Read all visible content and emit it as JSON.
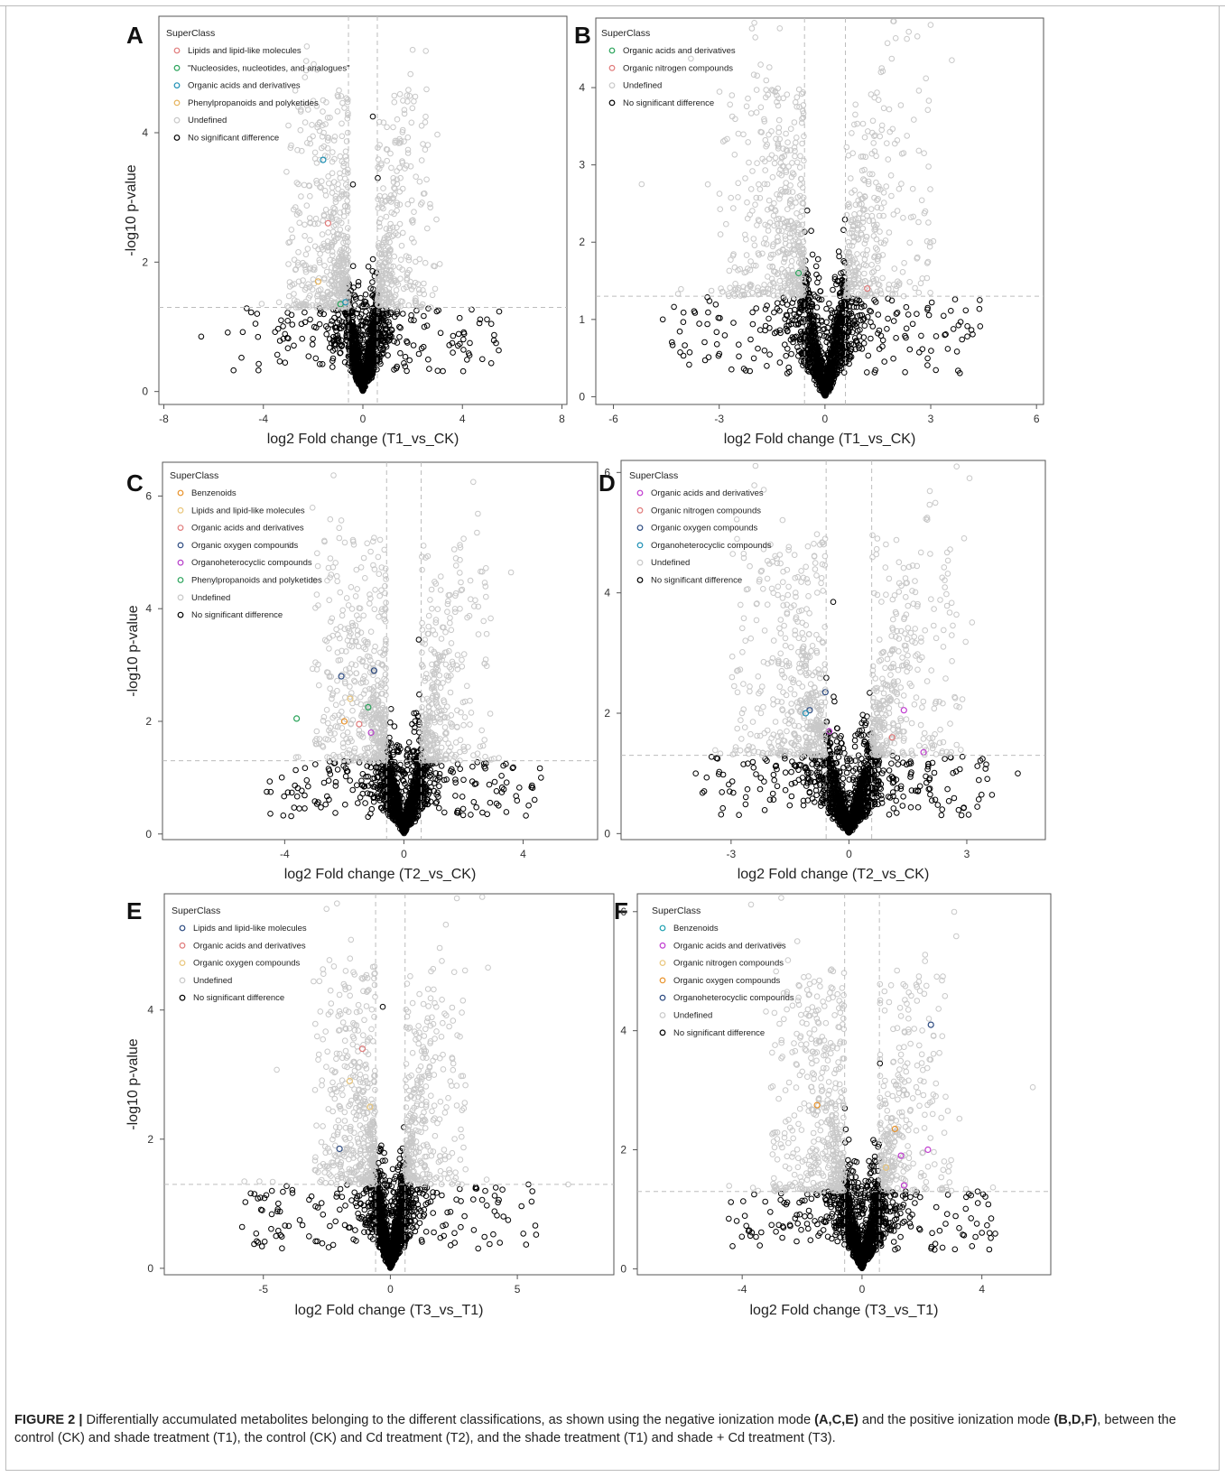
{
  "caption": {
    "label": "FIGURE 2 |",
    "parts": [
      {
        "t": " Differentially accumulated metabolites belonging to the different classifications, as shown using the negative ionization mode ",
        "b": false
      },
      {
        "t": "(A,C,E)",
        "b": true
      },
      {
        "t": " and the positive ionization mode ",
        "b": false
      },
      {
        "t": "(B,D,F)",
        "b": true
      },
      {
        "t": ", between the control (CK) and shade treatment (T1), the control (CK) and Cd treatment (T2), and the shade treatment (T1) and shade + Cd treatment (T3).",
        "b": false
      }
    ]
  },
  "colors": {
    "nonsig": "#000000",
    "undefined": "#c8c8c8",
    "threshold": "#bdbdbd",
    "axis": "#555555"
  },
  "chart_data": [
    {
      "panel": "A",
      "type": "scatter",
      "subtype": "volcano",
      "xlabel": "log2 Fold change (T1_vs_CK)",
      "ylabel": "-log10 p-value",
      "xticks": [
        -8,
        -4,
        0,
        4,
        8
      ],
      "yticks": [
        0,
        2,
        4
      ],
      "xlim": [
        -8.2,
        8.2
      ],
      "ylim": [
        -0.2,
        5.8
      ],
      "fc_threshold": 0.58,
      "p_threshold": 1.3,
      "legend_title": "SuperClass",
      "legend": [
        {
          "label": "Lipids and lipid-like molecules",
          "color": "#e07a7a"
        },
        {
          "label": "\"Nucleosides, nucleotides, and analogues\"",
          "color": "#2aa35a"
        },
        {
          "label": "Organic acids and derivatives",
          "color": "#1d8fb4"
        },
        {
          "label": "Phenylpropanoids and polyketides",
          "color": "#e5b25a"
        },
        {
          "label": "Undefined",
          "color": "#c8c8c8"
        },
        {
          "label": "No significant difference",
          "color": "#000000"
        }
      ],
      "highlighted": [
        {
          "x": -1.6,
          "y": 3.58,
          "color": "#1d8fb4"
        },
        {
          "x": -1.8,
          "y": 1.7,
          "color": "#e5b25a"
        },
        {
          "x": -0.9,
          "y": 1.35,
          "color": "#2aa35a"
        },
        {
          "x": -0.7,
          "y": 1.38,
          "color": "#1d8fb4"
        },
        {
          "x": -1.4,
          "y": 2.6,
          "color": "#e07a7a"
        }
      ],
      "notable": [
        {
          "x": 0.4,
          "y": 4.25
        },
        {
          "x": 0.6,
          "y": 3.3
        },
        {
          "x": -0.4,
          "y": 3.2
        },
        {
          "x": -6.5,
          "y": 0.85
        },
        {
          "x": 4.8,
          "y": 0.5
        },
        {
          "x": 4.3,
          "y": 0.75
        }
      ]
    },
    {
      "panel": "B",
      "type": "scatter",
      "subtype": "volcano",
      "xlabel": "log2 Fold change (T1_vs_CK)",
      "ylabel": "",
      "xticks": [
        -6,
        -3,
        0,
        3,
        6
      ],
      "yticks": [
        0,
        1,
        2,
        3,
        4
      ],
      "xlim": [
        -6.5,
        6.2
      ],
      "ylim": [
        -0.1,
        4.9
      ],
      "fc_threshold": 0.58,
      "p_threshold": 1.3,
      "legend_title": "SuperClass",
      "legend": [
        {
          "label": "Organic acids and derivatives",
          "color": "#2aa35a"
        },
        {
          "label": "Organic nitrogen compounds",
          "color": "#e07a7a"
        },
        {
          "label": "Undefined",
          "color": "#c8c8c8"
        },
        {
          "label": "No significant difference",
          "color": "#000000"
        }
      ],
      "highlighted": [
        {
          "x": -0.75,
          "y": 1.6,
          "color": "#2aa35a"
        },
        {
          "x": 1.2,
          "y": 1.4,
          "color": "#e07a7a"
        }
      ],
      "notable": [
        {
          "x": -4.6,
          "y": 1.0
        },
        {
          "x": 3.4,
          "y": 0.8
        },
        {
          "x": -5.2,
          "y": 2.75
        }
      ]
    },
    {
      "panel": "C",
      "type": "scatter",
      "subtype": "volcano",
      "xlabel": "log2 Fold change (T2_vs_CK)",
      "ylabel": "-log10 p-value",
      "xticks": [
        -4,
        0,
        4
      ],
      "yticks": [
        0,
        2,
        4,
        6
      ],
      "xlim": [
        -8.1,
        6.5
      ],
      "ylim": [
        -0.1,
        6.6
      ],
      "fc_threshold": 0.58,
      "p_threshold": 1.3,
      "legend_title": "SuperClass",
      "legend": [
        {
          "label": "Benzenoids",
          "color": "#e8922a"
        },
        {
          "label": "Lipids and lipid-like molecules",
          "color": "#e9c57a"
        },
        {
          "label": "Organic acids and derivatives",
          "color": "#e07a7a"
        },
        {
          "label": "Organic oxygen compounds",
          "color": "#2c4a80"
        },
        {
          "label": "Organoheterocyclic compounds",
          "color": "#b53ec9"
        },
        {
          "label": "Phenylpropanoids and polyketides",
          "color": "#2aa35a"
        },
        {
          "label": "Undefined",
          "color": "#c8c8c8"
        },
        {
          "label": "No significant difference",
          "color": "#000000"
        }
      ],
      "highlighted": [
        {
          "x": -3.6,
          "y": 2.05,
          "color": "#2aa35a"
        },
        {
          "x": -2.0,
          "y": 2.0,
          "color": "#e8922a"
        },
        {
          "x": -1.1,
          "y": 1.8,
          "color": "#b53ec9"
        },
        {
          "x": -1.2,
          "y": 2.25,
          "color": "#2aa35a"
        },
        {
          "x": -1.0,
          "y": 2.9,
          "color": "#2c4a80"
        },
        {
          "x": -1.8,
          "y": 2.4,
          "color": "#e9c57a"
        },
        {
          "x": -1.5,
          "y": 1.95,
          "color": "#e07a7a"
        },
        {
          "x": -2.1,
          "y": 2.8,
          "color": "#2c4a80"
        }
      ],
      "notable": [
        {
          "x": 0.5,
          "y": 3.45
        },
        {
          "x": -4.6,
          "y": 0.75
        },
        {
          "x": 4.6,
          "y": 1.0
        }
      ]
    },
    {
      "panel": "D",
      "type": "scatter",
      "subtype": "volcano",
      "xlabel": "log2 Fold change (T2_vs_CK)",
      "ylabel": "",
      "xticks": [
        -3,
        0,
        3
      ],
      "yticks": [
        0,
        2,
        4,
        6
      ],
      "xlim": [
        -5.8,
        5.0
      ],
      "ylim": [
        -0.1,
        6.2
      ],
      "fc_threshold": 0.58,
      "p_threshold": 1.3,
      "legend_title": "SuperClass",
      "legend": [
        {
          "label": "Organic acids and derivatives",
          "color": "#c03bd0"
        },
        {
          "label": "Organic nitrogen compounds",
          "color": "#e07a7a"
        },
        {
          "label": "Organic oxygen compounds",
          "color": "#2c4a80"
        },
        {
          "label": "Organoheterocyclic compounds",
          "color": "#1d8fb4"
        },
        {
          "label": "Undefined",
          "color": "#c8c8c8"
        },
        {
          "label": "No significant difference",
          "color": "#000000"
        }
      ],
      "highlighted": [
        {
          "x": -1.0,
          "y": 2.05,
          "color": "#2c4a80"
        },
        {
          "x": -0.6,
          "y": 2.35,
          "color": "#2c4a80"
        },
        {
          "x": -1.1,
          "y": 2.0,
          "color": "#1d8fb4"
        },
        {
          "x": -0.5,
          "y": 1.7,
          "color": "#c03bd0"
        },
        {
          "x": 1.4,
          "y": 2.05,
          "color": "#c03bd0"
        },
        {
          "x": 1.9,
          "y": 1.35,
          "color": "#c03bd0"
        },
        {
          "x": 1.1,
          "y": 1.6,
          "color": "#e07a7a"
        }
      ],
      "notable": [
        {
          "x": -0.4,
          "y": 3.85
        },
        {
          "x": 4.3,
          "y": 1.0
        },
        {
          "x": -3.9,
          "y": 1.0
        }
      ]
    },
    {
      "panel": "E",
      "type": "scatter",
      "subtype": "volcano",
      "xlabel": "log2 Fold change (T3_vs_T1)",
      "ylabel": "-log10 p-value",
      "xticks": [
        -5,
        0,
        5
      ],
      "yticks": [
        0,
        2,
        4
      ],
      "xlim": [
        -8.9,
        8.8
      ],
      "ylim": [
        -0.1,
        5.8
      ],
      "fc_threshold": 0.58,
      "p_threshold": 1.3,
      "legend_title": "SuperClass",
      "legend": [
        {
          "label": "Lipids and lipid-like molecules",
          "color": "#2c4a80"
        },
        {
          "label": "Organic acids and derivatives",
          "color": "#e07a7a"
        },
        {
          "label": "Organic oxygen compounds",
          "color": "#e9c57a"
        },
        {
          "label": "Undefined",
          "color": "#c8c8c8"
        },
        {
          "label": "No significant difference",
          "color": "#000000"
        }
      ],
      "highlighted": [
        {
          "x": -2.0,
          "y": 1.85,
          "color": "#2c4a80"
        },
        {
          "x": -1.6,
          "y": 2.9,
          "color": "#e9c57a"
        },
        {
          "x": -1.1,
          "y": 3.4,
          "color": "#e07a7a"
        },
        {
          "x": -0.8,
          "y": 2.5,
          "color": "#e9c57a"
        }
      ],
      "notable": [
        {
          "x": -0.3,
          "y": 4.05
        },
        {
          "x": 7.0,
          "y": 1.3
        },
        {
          "x": -4.5,
          "y": 0.5
        }
      ]
    },
    {
      "panel": "F",
      "type": "scatter",
      "subtype": "volcano",
      "xlabel": "log2 Fold change (T3_vs_T1)",
      "ylabel": "",
      "xticks": [
        -4,
        0,
        4
      ],
      "yticks": [
        0,
        2,
        4,
        6
      ],
      "xlim": [
        -7.5,
        6.3
      ],
      "ylim": [
        -0.1,
        6.3
      ],
      "fc_threshold": 0.58,
      "p_threshold": 1.3,
      "legend_title": "SuperClass",
      "legend": [
        {
          "label": "Benzenoids",
          "color": "#1d9fb0"
        },
        {
          "label": "Organic acids and derivatives",
          "color": "#c03bd0"
        },
        {
          "label": "Organic nitrogen compounds",
          "color": "#e9c57a"
        },
        {
          "label": "Organic oxygen compounds",
          "color": "#e8922a"
        },
        {
          "label": "Organoheterocyclic compounds",
          "color": "#2c4a80"
        },
        {
          "label": "Undefined",
          "color": "#c8c8c8"
        },
        {
          "label": "No significant difference",
          "color": "#000000"
        }
      ],
      "highlighted": [
        {
          "x": -1.5,
          "y": 2.75,
          "color": "#e8922a"
        },
        {
          "x": 1.1,
          "y": 2.35,
          "color": "#e8922a"
        },
        {
          "x": 2.3,
          "y": 4.1,
          "color": "#2c4a80"
        },
        {
          "x": 1.3,
          "y": 1.9,
          "color": "#c03bd0"
        },
        {
          "x": 2.2,
          "y": 2.0,
          "color": "#c03bd0"
        },
        {
          "x": 1.4,
          "y": 1.4,
          "color": "#c03bd0"
        },
        {
          "x": 0.8,
          "y": 1.7,
          "color": "#e9c57a"
        }
      ],
      "notable": [
        {
          "x": 0.6,
          "y": 3.45
        },
        {
          "x": 5.7,
          "y": 3.05
        },
        {
          "x": -3.6,
          "y": 1.25
        }
      ]
    }
  ]
}
